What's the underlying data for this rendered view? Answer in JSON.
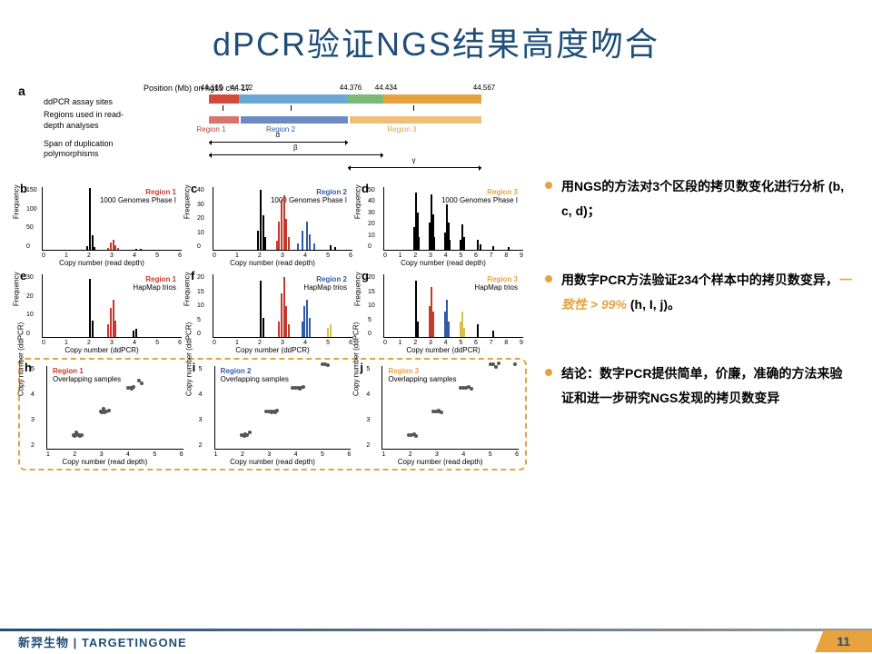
{
  "slide": {
    "title": "dPCR验证NGS结果高度吻合",
    "page_number": "11",
    "footer_company": "新羿生物",
    "footer_brand": "TARGETINGONE"
  },
  "colors": {
    "title": "#1f4e79",
    "accent": "#e8a23d",
    "region1": "#c43a2e",
    "region2": "#2e5aa8",
    "region3": "#e8a23d",
    "chrom_seg1": "#d44a3a",
    "chrom_seg2": "#6aa8d8",
    "chrom_seg3": "#7ab87a",
    "chrom_seg4": "#e8a23d",
    "bar_black": "#000000"
  },
  "panel_a": {
    "header": "Position (Mb) on hg19 chr. 17",
    "positions": [
      "44.165",
      "44.212",
      "44.376",
      "44.434",
      "44.567"
    ],
    "row_labels": [
      "ddPCR assay sites",
      "Regions used in read-depth analyses",
      "Span of duplication polymorphisms"
    ],
    "regions": [
      "Region 1",
      "Region 2",
      "Region 3"
    ],
    "arrows": [
      "α",
      "β",
      "γ"
    ],
    "chrom_widths": [
      11,
      40,
      13,
      36
    ],
    "region_widths": [
      11,
      40,
      49
    ],
    "region_colors": [
      "#c43a2e",
      "#2e5aa8",
      "#e8a23d"
    ]
  },
  "histograms_row1": {
    "ylabel": "Frequency",
    "xlabel": "Copy number (read depth)",
    "sample_label": "1000 Genomes Phase I",
    "panels": [
      {
        "label": "b",
        "region": "Region 1",
        "color": "#c43a2e",
        "xmax": 6,
        "ymax": 150,
        "yticks": [
          0,
          50,
          100,
          150
        ],
        "bars": [
          {
            "x": 1.9,
            "h": 8
          },
          {
            "x": 2.0,
            "h": 148
          },
          {
            "x": 2.1,
            "h": 35
          },
          {
            "x": 2.2,
            "h": 6
          },
          {
            "x": 2.8,
            "h": 5,
            "c": "#c43a2e"
          },
          {
            "x": 2.9,
            "h": 18,
            "c": "#c43a2e"
          },
          {
            "x": 3.0,
            "h": 24,
            "c": "#c43a2e"
          },
          {
            "x": 3.1,
            "h": 10,
            "c": "#c43a2e"
          },
          {
            "x": 3.2,
            "h": 4,
            "c": "#c43a2e"
          },
          {
            "x": 4.0,
            "h": 3
          },
          {
            "x": 4.2,
            "h": 2
          }
        ]
      },
      {
        "label": "c",
        "region": "Region 2",
        "color": "#2e5aa8",
        "xmax": 6,
        "ymax": 40,
        "yticks": [
          0,
          10,
          20,
          30,
          40
        ],
        "bars": [
          {
            "x": 1.9,
            "h": 12
          },
          {
            "x": 2.0,
            "h": 38
          },
          {
            "x": 2.1,
            "h": 22
          },
          {
            "x": 2.2,
            "h": 8
          },
          {
            "x": 2.7,
            "h": 6,
            "c": "#c43a2e"
          },
          {
            "x": 2.8,
            "h": 18,
            "c": "#c43a2e"
          },
          {
            "x": 2.9,
            "h": 32,
            "c": "#c43a2e"
          },
          {
            "x": 3.0,
            "h": 35,
            "c": "#c43a2e"
          },
          {
            "x": 3.1,
            "h": 20,
            "c": "#c43a2e"
          },
          {
            "x": 3.2,
            "h": 8,
            "c": "#c43a2e"
          },
          {
            "x": 3.6,
            "h": 4,
            "c": "#2e5aa8"
          },
          {
            "x": 3.8,
            "h": 12,
            "c": "#2e5aa8"
          },
          {
            "x": 4.0,
            "h": 18,
            "c": "#2e5aa8"
          },
          {
            "x": 4.1,
            "h": 10,
            "c": "#2e5aa8"
          },
          {
            "x": 4.3,
            "h": 4,
            "c": "#2e5aa8"
          },
          {
            "x": 5.0,
            "h": 3
          },
          {
            "x": 5.2,
            "h": 2
          }
        ]
      },
      {
        "label": "d",
        "region": "Region 3",
        "color": "#e8a23d",
        "xmax": 9,
        "ymax": 50,
        "yticks": [
          0,
          10,
          20,
          30,
          40,
          50
        ],
        "bars": [
          {
            "x": 1.9,
            "h": 18
          },
          {
            "x": 2.0,
            "h": 46
          },
          {
            "x": 2.1,
            "h": 30
          },
          {
            "x": 2.2,
            "h": 10
          },
          {
            "x": 2.9,
            "h": 22
          },
          {
            "x": 3.0,
            "h": 44
          },
          {
            "x": 3.1,
            "h": 28
          },
          {
            "x": 3.2,
            "h": 10
          },
          {
            "x": 3.9,
            "h": 14
          },
          {
            "x": 4.0,
            "h": 36
          },
          {
            "x": 4.1,
            "h": 22
          },
          {
            "x": 4.2,
            "h": 8
          },
          {
            "x": 4.9,
            "h": 8
          },
          {
            "x": 5.0,
            "h": 20
          },
          {
            "x": 5.1,
            "h": 10
          },
          {
            "x": 6.0,
            "h": 8
          },
          {
            "x": 6.2,
            "h": 4
          },
          {
            "x": 7.0,
            "h": 3
          },
          {
            "x": 8.0,
            "h": 2
          }
        ]
      }
    ]
  },
  "histograms_row2": {
    "ylabel": "Frequency",
    "xlabel": "Copy number (ddPCR)",
    "sample_label": "HapMap trios",
    "panels": [
      {
        "label": "e",
        "region": "Region 1",
        "color": "#c43a2e",
        "xmax": 6,
        "ymax": 30,
        "yticks": [
          0,
          10,
          20,
          30
        ],
        "bars": [
          {
            "x": 2.0,
            "h": 28
          },
          {
            "x": 2.1,
            "h": 8
          },
          {
            "x": 2.8,
            "h": 6,
            "c": "#c43a2e"
          },
          {
            "x": 2.9,
            "h": 14,
            "c": "#c43a2e"
          },
          {
            "x": 3.0,
            "h": 18,
            "c": "#c43a2e"
          },
          {
            "x": 3.1,
            "h": 8,
            "c": "#c43a2e"
          },
          {
            "x": 3.9,
            "h": 3
          },
          {
            "x": 4.0,
            "h": 4
          }
        ]
      },
      {
        "label": "f",
        "region": "Region 2",
        "color": "#2e5aa8",
        "xmax": 6,
        "ymax": 20,
        "yticks": [
          0,
          5,
          10,
          15,
          20
        ],
        "bars": [
          {
            "x": 2.0,
            "h": 18
          },
          {
            "x": 2.1,
            "h": 6
          },
          {
            "x": 2.8,
            "h": 5,
            "c": "#c43a2e"
          },
          {
            "x": 2.9,
            "h": 14,
            "c": "#c43a2e"
          },
          {
            "x": 3.0,
            "h": 19,
            "c": "#c43a2e"
          },
          {
            "x": 3.1,
            "h": 10,
            "c": "#c43a2e"
          },
          {
            "x": 3.2,
            "h": 4,
            "c": "#c43a2e"
          },
          {
            "x": 3.8,
            "h": 5,
            "c": "#2e5aa8"
          },
          {
            "x": 3.9,
            "h": 10,
            "c": "#2e5aa8"
          },
          {
            "x": 4.0,
            "h": 12,
            "c": "#2e5aa8"
          },
          {
            "x": 4.1,
            "h": 6,
            "c": "#2e5aa8"
          },
          {
            "x": 4.9,
            "h": 3,
            "c": "#d8c24a"
          },
          {
            "x": 5.0,
            "h": 4,
            "c": "#d8c24a"
          }
        ]
      },
      {
        "label": "g",
        "region": "Region 3",
        "color": "#e8a23d",
        "xmax": 9,
        "ymax": 20,
        "yticks": [
          0,
          5,
          10,
          15,
          20
        ],
        "bars": [
          {
            "x": 2.0,
            "h": 18
          },
          {
            "x": 2.1,
            "h": 5
          },
          {
            "x": 2.9,
            "h": 10,
            "c": "#c43a2e"
          },
          {
            "x": 3.0,
            "h": 16,
            "c": "#c43a2e"
          },
          {
            "x": 3.1,
            "h": 8,
            "c": "#c43a2e"
          },
          {
            "x": 3.9,
            "h": 8,
            "c": "#2e5aa8"
          },
          {
            "x": 4.0,
            "h": 12,
            "c": "#2e5aa8"
          },
          {
            "x": 4.1,
            "h": 5,
            "c": "#2e5aa8"
          },
          {
            "x": 4.9,
            "h": 5,
            "c": "#d8c24a"
          },
          {
            "x": 5.0,
            "h": 8,
            "c": "#d8c24a"
          },
          {
            "x": 5.1,
            "h": 3,
            "c": "#d8c24a"
          },
          {
            "x": 6.0,
            "h": 4
          },
          {
            "x": 7.0,
            "h": 2
          }
        ]
      }
    ]
  },
  "scatters": {
    "xlabel": "Copy number (read depth)",
    "ylabel": "Copy number (ddPCR)",
    "sample_label": "Overlapping samples",
    "panels": [
      {
        "label": "h",
        "region": "Region 1",
        "color": "#c43a2e",
        "xrange": [
          1,
          6
        ],
        "yrange": [
          1.5,
          5
        ],
        "points": [
          [
            1.9,
            2.0
          ],
          [
            2.0,
            2.0
          ],
          [
            2.1,
            2.0
          ],
          [
            2.0,
            2.1
          ],
          [
            2.2,
            2.0
          ],
          [
            1.95,
            1.95
          ],
          [
            2.05,
            2.05
          ],
          [
            2.15,
            1.98
          ],
          [
            2.9,
            3.0
          ],
          [
            3.0,
            3.0
          ],
          [
            3.1,
            3.0
          ],
          [
            3.0,
            3.1
          ],
          [
            2.95,
            2.95
          ],
          [
            3.05,
            2.98
          ],
          [
            3.2,
            3.05
          ],
          [
            3.9,
            4.0
          ],
          [
            4.0,
            4.0
          ],
          [
            4.1,
            4.05
          ],
          [
            4.05,
            3.95
          ],
          [
            4.3,
            4.3
          ],
          [
            4.4,
            4.2
          ]
        ]
      },
      {
        "label": "i",
        "region": "Region 2",
        "color": "#2e5aa8",
        "xrange": [
          1,
          6
        ],
        "yrange": [
          1.5,
          5
        ],
        "points": [
          [
            1.9,
            2.0
          ],
          [
            2.0,
            2.0
          ],
          [
            2.1,
            2.0
          ],
          [
            2.05,
            2.05
          ],
          [
            2.2,
            2.1
          ],
          [
            2.0,
            1.95
          ],
          [
            2.8,
            3.0
          ],
          [
            2.9,
            3.0
          ],
          [
            3.0,
            3.0
          ],
          [
            3.1,
            3.0
          ],
          [
            3.0,
            2.95
          ],
          [
            3.2,
            3.05
          ],
          [
            3.15,
            2.98
          ],
          [
            3.8,
            4.0
          ],
          [
            3.9,
            4.0
          ],
          [
            4.0,
            4.0
          ],
          [
            4.1,
            4.0
          ],
          [
            4.05,
            3.95
          ],
          [
            4.2,
            4.05
          ],
          [
            4.9,
            5.0
          ],
          [
            5.0,
            5.0
          ],
          [
            5.1,
            4.95
          ]
        ]
      },
      {
        "label": "j",
        "region": "Region 3",
        "color": "#e8a23d",
        "xrange": [
          1,
          6
        ],
        "yrange": [
          1.5,
          5
        ],
        "points": [
          [
            1.9,
            2.0
          ],
          [
            2.0,
            2.0
          ],
          [
            2.1,
            2.05
          ],
          [
            2.15,
            1.98
          ],
          [
            2.8,
            3.0
          ],
          [
            2.9,
            3.0
          ],
          [
            3.0,
            3.0
          ],
          [
            3.1,
            2.95
          ],
          [
            3.0,
            3.05
          ],
          [
            3.8,
            4.0
          ],
          [
            3.9,
            4.0
          ],
          [
            4.0,
            4.0
          ],
          [
            4.1,
            4.05
          ],
          [
            4.2,
            3.95
          ],
          [
            4.9,
            5.0
          ],
          [
            5.0,
            5.0
          ],
          [
            5.1,
            4.9
          ],
          [
            5.2,
            5.05
          ],
          [
            5.8,
            5.0
          ]
        ]
      }
    ]
  },
  "bullets": [
    {
      "color": "#e8a23d",
      "html": "用NGS的方法对3个区段的拷贝数变化进行分析 (b, c, d)；"
    },
    {
      "color": "#e8a23d",
      "html": "用数字PCR方法验证234个样本中的拷贝数变异，<span class='highlight'>一致性 &gt; 99%</span> (h, I, j)。"
    },
    {
      "color": "#e8a23d",
      "html": "结论：数字PCR提供简单，价廉，准确的方法来验证和进一步研究NGS发现的拷贝数变异"
    }
  ]
}
